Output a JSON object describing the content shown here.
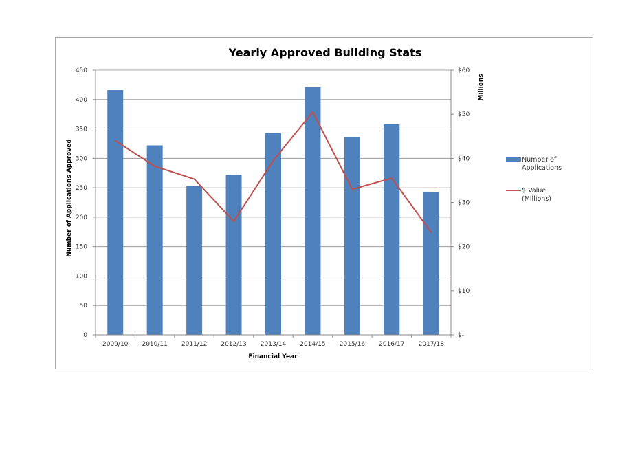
{
  "chart_data": {
    "type": "bar",
    "title": "Yearly Approved Building Stats",
    "xlabel": "Financial Year",
    "ylabel": "Number of Applications Approved",
    "y2label": "Millions",
    "categories": [
      "2009/10",
      "2010/11",
      "2011/12",
      "2012/13",
      "2013/14",
      "2014/15",
      "2015/16",
      "2016/17",
      "2017/18"
    ],
    "ylim": [
      0,
      450
    ],
    "yticks": [
      "0",
      "50",
      "100",
      "150",
      "200",
      "250",
      "300",
      "350",
      "400",
      "450"
    ],
    "y2lim": [
      0,
      60
    ],
    "y2ticks": [
      "$-",
      "$10",
      "$20",
      "$30",
      "$40",
      "$50",
      "$60"
    ],
    "grid": true,
    "legend_position": "right",
    "series": [
      {
        "name": "Number of Applications",
        "type": "bar",
        "color": "#4f81bd",
        "axis": "left",
        "values": [
          416,
          322,
          253,
          272,
          343,
          421,
          336,
          358,
          243
        ]
      },
      {
        "name": "$ Value (Millions)",
        "type": "line",
        "color": "#c0504d",
        "axis": "right",
        "values": [
          44,
          38.2,
          35.3,
          25.7,
          39.5,
          50.5,
          33,
          35.5,
          23.2
        ]
      }
    ],
    "legend": [
      {
        "lines": [
          "Number of",
          "Applications"
        ],
        "color": "#4f81bd",
        "type": "bar"
      },
      {
        "lines": [
          "$ Value",
          "(Millions)"
        ],
        "color": "#c0504d",
        "type": "line"
      }
    ]
  }
}
